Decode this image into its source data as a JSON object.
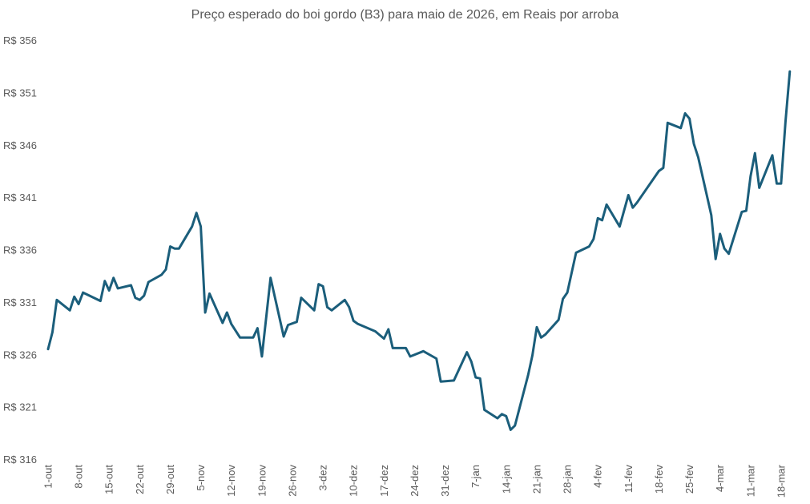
{
  "chart_data": {
    "type": "line",
    "title": "Preço esperado do boi gordo (B3) para maio de 2026, em Reais por arroba",
    "xlabel": "",
    "ylabel": "",
    "ylim": [
      316,
      356
    ],
    "y_ticks": [
      "R$ 316",
      "R$ 321",
      "R$ 326",
      "R$ 331",
      "R$ 336",
      "R$ 341",
      "R$ 346",
      "R$ 351",
      "R$ 356"
    ],
    "y_tick_values": [
      316,
      321,
      326,
      331,
      336,
      341,
      346,
      351,
      356
    ],
    "x_ticks": [
      "1-out",
      "8-out",
      "15-out",
      "22-out",
      "29-out",
      "5-nov",
      "12-nov",
      "19-nov",
      "26-nov",
      "3-dez",
      "10-dez",
      "17-dez",
      "24-dez",
      "31-dez",
      "7-jan",
      "14-jan",
      "21-jan",
      "28-jan",
      "4-fev",
      "11-fev",
      "18-fev",
      "25-fev",
      "4-mar",
      "11-mar",
      "18-mar"
    ],
    "x_tick_dates": [
      "2025-10-01",
      "2025-10-08",
      "2025-10-15",
      "2025-10-22",
      "2025-10-29",
      "2025-11-05",
      "2025-11-12",
      "2025-11-19",
      "2025-11-26",
      "2025-12-03",
      "2025-12-10",
      "2025-12-17",
      "2025-12-24",
      "2025-12-31",
      "2026-01-07",
      "2026-01-14",
      "2026-01-21",
      "2026-01-28",
      "2026-02-04",
      "2026-02-11",
      "2026-02-18",
      "2026-02-25",
      "2026-03-04",
      "2026-03-11",
      "2026-03-18"
    ],
    "grid": false,
    "legend": "none",
    "line_color": "#1b5e7b",
    "series": [
      {
        "x": [
          "2025-10-01",
          "2025-10-02",
          "2025-10-03",
          "2025-10-06",
          "2025-10-07",
          "2025-10-08",
          "2025-10-09",
          "2025-10-13",
          "2025-10-14",
          "2025-10-15",
          "2025-10-16",
          "2025-10-17",
          "2025-10-20",
          "2025-10-21",
          "2025-10-22",
          "2025-10-23",
          "2025-10-24",
          "2025-10-27",
          "2025-10-28",
          "2025-10-29",
          "2025-10-30",
          "2025-10-31",
          "2025-11-03",
          "2025-11-04",
          "2025-11-05",
          "2025-11-06",
          "2025-11-07",
          "2025-11-10",
          "2025-11-11",
          "2025-11-12",
          "2025-11-14",
          "2025-11-17",
          "2025-11-18",
          "2025-11-19",
          "2025-11-21",
          "2025-11-24",
          "2025-11-25",
          "2025-11-27",
          "2025-11-28",
          "2025-12-01",
          "2025-12-02",
          "2025-12-03",
          "2025-12-04",
          "2025-12-05",
          "2025-12-08",
          "2025-12-09",
          "2025-12-10",
          "2025-12-11",
          "2025-12-15",
          "2025-12-17",
          "2025-12-18",
          "2025-12-19",
          "2025-12-22",
          "2025-12-23",
          "2025-12-26",
          "2025-12-29",
          "2025-12-30",
          "2026-01-02",
          "2026-01-05",
          "2026-01-06",
          "2026-01-07",
          "2026-01-08",
          "2026-01-09",
          "2026-01-12",
          "2026-01-13",
          "2026-01-14",
          "2026-01-15",
          "2026-01-16",
          "2026-01-19",
          "2026-01-20",
          "2026-01-21",
          "2026-01-22",
          "2026-01-23",
          "2026-01-26",
          "2026-01-27",
          "2026-01-28",
          "2026-01-30",
          "2026-02-02",
          "2026-02-03",
          "2026-02-04",
          "2026-02-05",
          "2026-02-06",
          "2026-02-09",
          "2026-02-11",
          "2026-02-12",
          "2026-02-13",
          "2026-02-18",
          "2026-02-19",
          "2026-02-20",
          "2026-02-23",
          "2026-02-24",
          "2026-02-25",
          "2026-02-26",
          "2026-02-27",
          "2026-03-02",
          "2026-03-03",
          "2026-03-04",
          "2026-03-05",
          "2026-03-06",
          "2026-03-09",
          "2026-03-10",
          "2026-03-11",
          "2026-03-12",
          "2026-03-13",
          "2026-03-16",
          "2026-03-17",
          "2026-03-18",
          "2026-03-19",
          "2026-03-20"
        ],
        "values": [
          326.5,
          328.1,
          331.2,
          330.2,
          331.5,
          330.8,
          331.9,
          331.1,
          333.0,
          332.1,
          333.3,
          332.3,
          332.6,
          331.4,
          331.2,
          331.6,
          332.9,
          333.6,
          334.1,
          336.3,
          336.1,
          336.1,
          338.2,
          339.5,
          338.2,
          330.0,
          331.8,
          329.0,
          330.0,
          328.9,
          327.6,
          327.6,
          328.5,
          325.8,
          333.3,
          327.7,
          328.8,
          329.1,
          331.4,
          330.2,
          332.7,
          332.5,
          330.5,
          330.2,
          331.2,
          330.5,
          329.2,
          328.9,
          328.2,
          327.5,
          328.4,
          326.6,
          326.6,
          325.8,
          326.3,
          325.6,
          323.4,
          323.5,
          326.2,
          325.3,
          323.8,
          323.7,
          320.7,
          319.9,
          320.3,
          320.1,
          318.8,
          319.2,
          324.0,
          325.9,
          328.6,
          327.6,
          327.9,
          329.3,
          331.3,
          331.9,
          335.7,
          336.3,
          337.0,
          339.0,
          338.8,
          340.3,
          338.2,
          341.2,
          340.0,
          340.5,
          343.5,
          343.8,
          348.1,
          347.6,
          349.0,
          348.5,
          346.1,
          344.8,
          339.3,
          335.1,
          337.5,
          336.1,
          335.6,
          339.6,
          339.7,
          343.0,
          345.2,
          341.9,
          345.0,
          342.3,
          342.3,
          348.2,
          353.0
        ]
      }
    ]
  }
}
